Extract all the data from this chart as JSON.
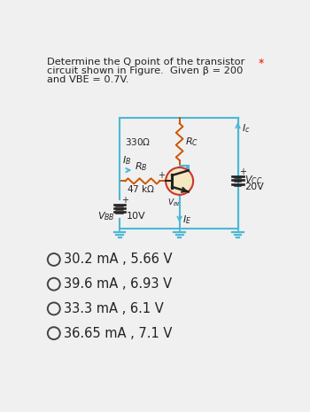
{
  "title_line1": "Determine the Q point of the transistor",
  "title_line2": "circuit shown in Figure.  Given β = 200",
  "title_line3": "and VBE = 0.7V.",
  "asterisk": "*",
  "options": [
    "30.2 mA , 5.66 V",
    "39.6 mA , 6.93 V",
    "33.3 mA , 6.1 V",
    "36.65 mA , 7.1 V"
  ],
  "bg_color": "#f0f0f0",
  "wire_color": "#4db8d4",
  "resistor_color": "#cc5500",
  "text_color": "#222222",
  "transistor_edge": "#cc3333",
  "transistor_fill": "#f5e8c0",
  "transistor_internal": "#222222",
  "battery_color": "#222222",
  "ground_color": "#4db8d4",
  "label_color": "#222222"
}
